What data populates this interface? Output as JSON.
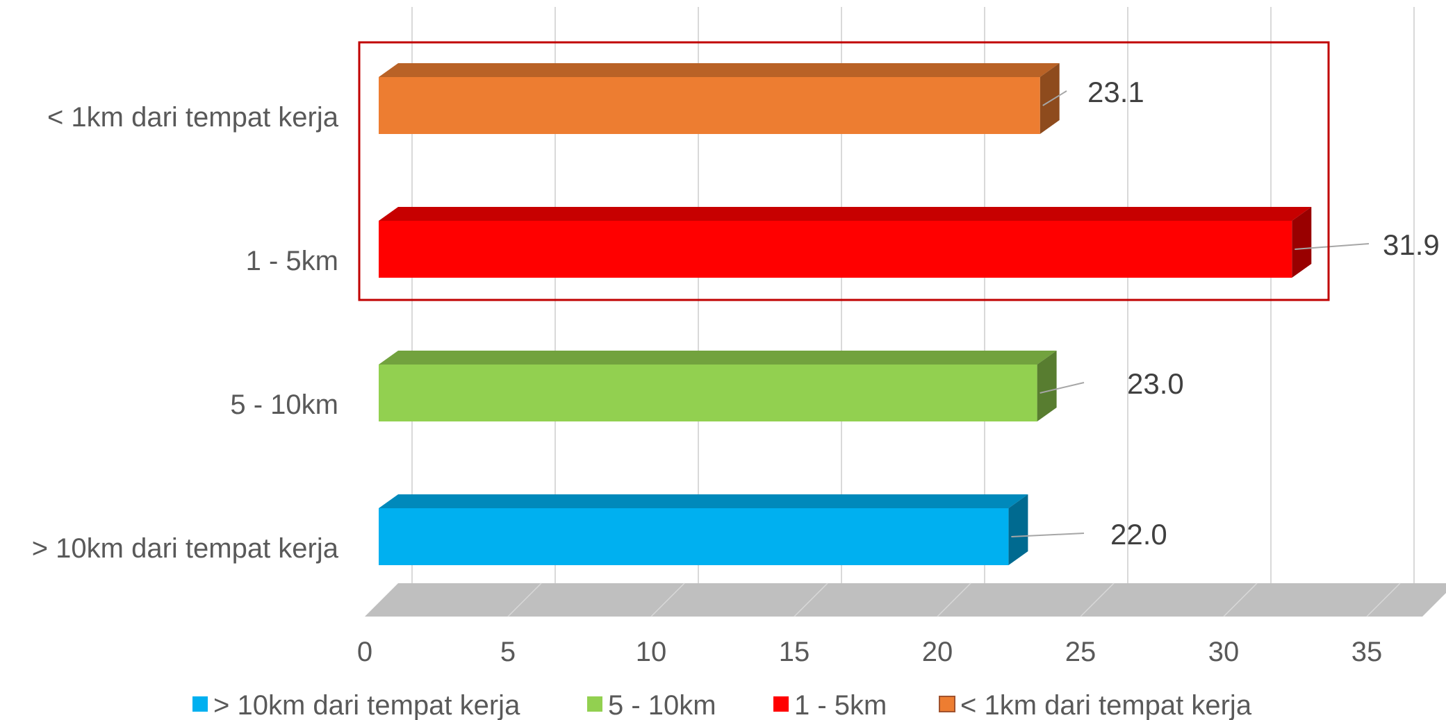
{
  "chart_data": {
    "type": "bar",
    "orientation": "horizontal",
    "style": "3d",
    "categories": [
      "> 10km dari tempat kerja",
      "5 - 10km",
      "1 - 5km",
      "< 1km dari tempat kerja"
    ],
    "values": [
      22.0,
      23.0,
      31.9,
      23.1
    ],
    "value_labels": [
      "22.0",
      "23.0",
      "31.9",
      "23.1"
    ],
    "colors": [
      "#00B0F0",
      "#92D050",
      "#FF0000",
      "#ED7D31"
    ],
    "xlim": [
      0,
      35
    ],
    "x_ticks": [
      "0",
      "5",
      "10",
      "15",
      "20",
      "25",
      "30",
      "35"
    ],
    "grid": true,
    "legend_position": "bottom",
    "legend": [
      "> 10km dari tempat kerja",
      "5 - 10km",
      "1 - 5km",
      "< 1km dari tempat kerja"
    ],
    "highlight_categories": [
      "< 1km dari tempat kerja",
      "1 - 5km"
    ],
    "highlight_color": "#C00000",
    "title": "",
    "xlabel": "",
    "ylabel": ""
  }
}
